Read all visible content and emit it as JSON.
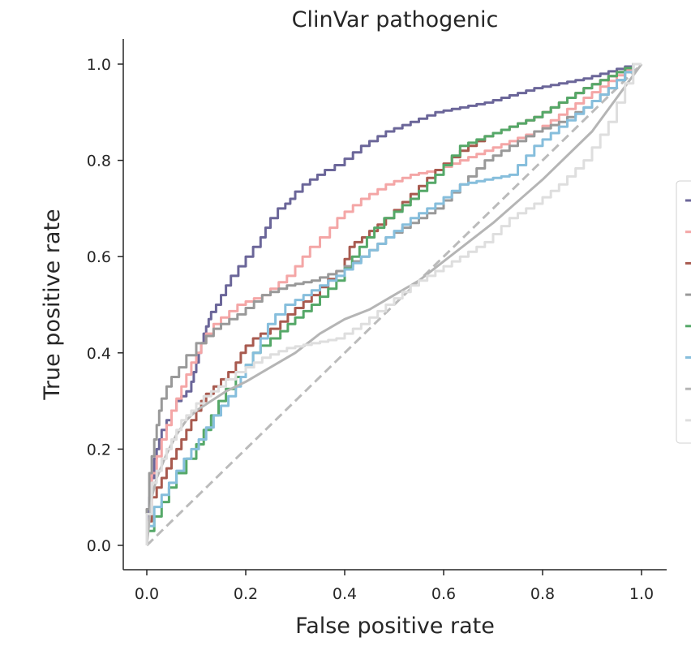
{
  "chart_data": {
    "type": "line",
    "title": "ClinVar pathogenic",
    "xlabel": "False positive rate",
    "ylabel": "True positive rate",
    "xlim": [
      0.0,
      1.0
    ],
    "ylim": [
      0.0,
      1.0
    ],
    "xticks": [
      "0.0",
      "0.2",
      "0.4",
      "0.6",
      "0.8",
      "1.0"
    ],
    "yticks": [
      "0.0",
      "0.2",
      "0.4",
      "0.6",
      "0.8",
      "1.0"
    ],
    "grid": false,
    "legend_position": "right",
    "diagonal": {
      "x": [
        0,
        1
      ],
      "y": [
        0,
        1
      ],
      "color": "#bbbbbb",
      "style": "dashed"
    },
    "series": [
      {
        "color": "#6b6699",
        "step": true,
        "x": [
          0,
          0.01,
          0.02,
          0.03,
          0.05,
          0.07,
          0.09,
          0.1,
          0.11,
          0.12,
          0.13,
          0.15,
          0.17,
          0.2,
          0.23,
          0.25,
          0.28,
          0.3,
          0.33,
          0.36,
          0.4,
          0.45,
          0.5,
          0.55,
          0.6,
          0.7,
          0.8,
          0.9,
          1.0
        ],
        "y": [
          0,
          0.1,
          0.18,
          0.22,
          0.26,
          0.3,
          0.32,
          0.36,
          0.4,
          0.44,
          0.47,
          0.5,
          0.54,
          0.58,
          0.62,
          0.66,
          0.7,
          0.72,
          0.75,
          0.77,
          0.79,
          0.83,
          0.86,
          0.88,
          0.9,
          0.92,
          0.95,
          0.97,
          1.0
        ]
      },
      {
        "color": "#f4a6a6",
        "step": true,
        "x": [
          0,
          0.02,
          0.04,
          0.06,
          0.08,
          0.1,
          0.12,
          0.15,
          0.2,
          0.25,
          0.3,
          0.33,
          0.37,
          0.4,
          0.45,
          0.5,
          0.55,
          0.6,
          0.65,
          0.7,
          0.8,
          0.9,
          1.0
        ],
        "y": [
          0,
          0.15,
          0.22,
          0.28,
          0.33,
          0.38,
          0.42,
          0.46,
          0.5,
          0.52,
          0.56,
          0.6,
          0.64,
          0.68,
          0.72,
          0.75,
          0.77,
          0.78,
          0.8,
          0.82,
          0.86,
          0.93,
          1.0
        ]
      },
      {
        "color": "#a85a4f",
        "step": true,
        "x": [
          0,
          0.02,
          0.04,
          0.06,
          0.08,
          0.1,
          0.12,
          0.15,
          0.18,
          0.2,
          0.23,
          0.27,
          0.3,
          0.35,
          0.4,
          0.42,
          0.45,
          0.5,
          0.55,
          0.6,
          0.65,
          0.7,
          0.8,
          0.9,
          1.0
        ],
        "y": [
          0,
          0.1,
          0.14,
          0.18,
          0.22,
          0.26,
          0.3,
          0.33,
          0.36,
          0.4,
          0.43,
          0.45,
          0.48,
          0.52,
          0.57,
          0.62,
          0.64,
          0.68,
          0.73,
          0.78,
          0.82,
          0.85,
          0.89,
          0.95,
          1.0
        ]
      },
      {
        "color": "#999999",
        "step": true,
        "x": [
          0,
          0.01,
          0.02,
          0.03,
          0.05,
          0.08,
          0.12,
          0.15,
          0.2,
          0.25,
          0.3,
          0.35,
          0.4,
          0.45,
          0.5,
          0.55,
          0.6,
          0.65,
          0.7,
          0.75,
          0.8,
          0.85,
          0.9,
          0.95,
          1.0
        ],
        "y": [
          0,
          0.15,
          0.22,
          0.28,
          0.33,
          0.37,
          0.42,
          0.45,
          0.48,
          0.52,
          0.54,
          0.55,
          0.57,
          0.6,
          0.64,
          0.67,
          0.7,
          0.75,
          0.8,
          0.83,
          0.86,
          0.88,
          0.91,
          0.95,
          1.0
        ]
      },
      {
        "color": "#55a868",
        "step": true,
        "x": [
          0,
          0.03,
          0.06,
          0.1,
          0.13,
          0.16,
          0.2,
          0.23,
          0.27,
          0.3,
          0.35,
          0.4,
          0.43,
          0.46,
          0.5,
          0.55,
          0.6,
          0.65,
          0.7,
          0.8,
          0.9,
          1.0
        ],
        "y": [
          0,
          0.06,
          0.12,
          0.18,
          0.24,
          0.3,
          0.35,
          0.4,
          0.43,
          0.46,
          0.5,
          0.55,
          0.6,
          0.64,
          0.68,
          0.72,
          0.77,
          0.83,
          0.85,
          0.89,
          0.95,
          1.0
        ]
      },
      {
        "color": "#86bedc",
        "step": true,
        "x": [
          0,
          0.03,
          0.06,
          0.09,
          0.12,
          0.15,
          0.18,
          0.2,
          0.23,
          0.26,
          0.3,
          0.35,
          0.4,
          0.45,
          0.5,
          0.55,
          0.6,
          0.65,
          0.7,
          0.75,
          0.8,
          0.85,
          0.9,
          0.95,
          1.0
        ],
        "y": [
          0,
          0.08,
          0.13,
          0.18,
          0.22,
          0.27,
          0.31,
          0.35,
          0.4,
          0.46,
          0.5,
          0.53,
          0.56,
          0.6,
          0.64,
          0.68,
          0.71,
          0.75,
          0.76,
          0.77,
          0.83,
          0.87,
          0.91,
          0.95,
          1.0
        ]
      },
      {
        "color": "#b5b5b5",
        "step": false,
        "x": [
          0,
          0.01,
          0.02,
          0.04,
          0.06,
          0.08,
          0.1,
          0.13,
          0.16,
          0.2,
          0.25,
          0.3,
          0.35,
          0.4,
          0.45,
          0.5,
          0.55,
          0.6,
          0.7,
          0.8,
          0.9,
          1.0
        ],
        "y": [
          0,
          0.1,
          0.14,
          0.19,
          0.23,
          0.26,
          0.28,
          0.3,
          0.32,
          0.34,
          0.37,
          0.4,
          0.44,
          0.47,
          0.49,
          0.52,
          0.55,
          0.59,
          0.67,
          0.76,
          0.86,
          1.0
        ]
      },
      {
        "color": "#dedede",
        "step": true,
        "x": [
          0,
          0.02,
          0.04,
          0.06,
          0.08,
          0.1,
          0.13,
          0.16,
          0.2,
          0.25,
          0.3,
          0.35,
          0.4,
          0.45,
          0.5,
          0.55,
          0.6,
          0.65,
          0.7,
          0.75,
          0.8,
          0.85,
          0.9,
          0.95,
          1.0
        ],
        "y": [
          0,
          0.13,
          0.18,
          0.22,
          0.26,
          0.28,
          0.31,
          0.33,
          0.36,
          0.39,
          0.41,
          0.42,
          0.43,
          0.46,
          0.5,
          0.54,
          0.57,
          0.6,
          0.63,
          0.68,
          0.71,
          0.75,
          0.8,
          0.88,
          1.0
        ]
      }
    ]
  }
}
